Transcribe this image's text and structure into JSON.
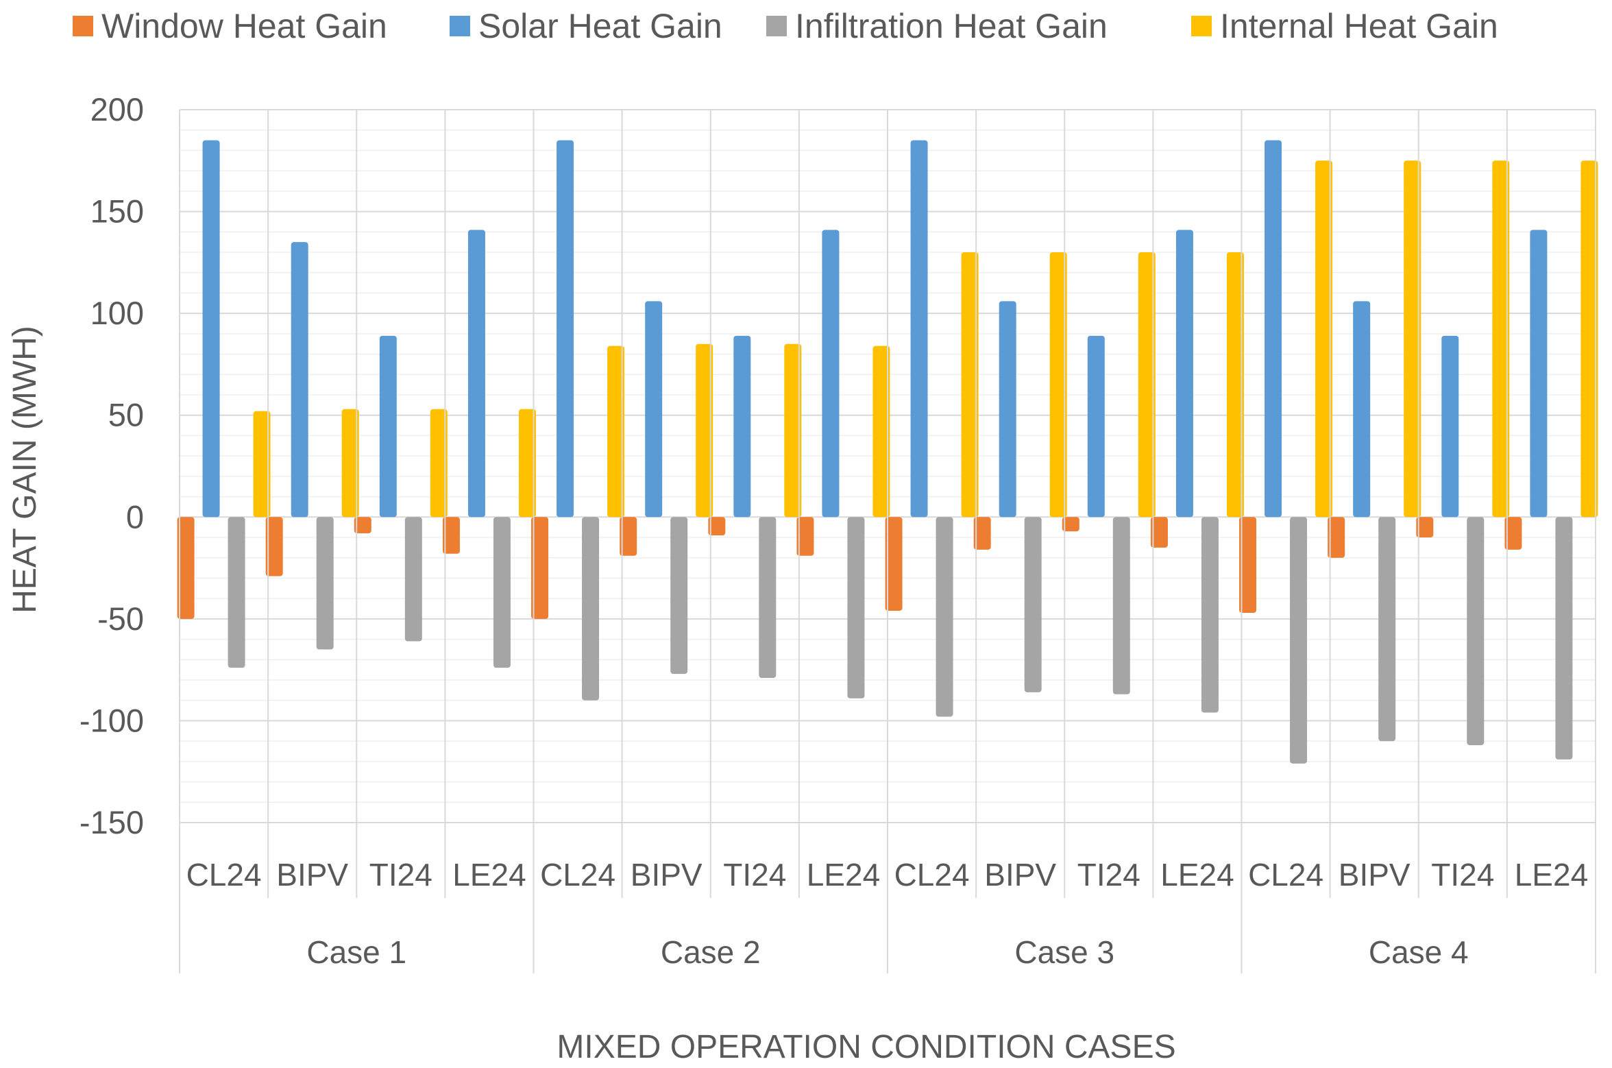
{
  "chart_data": {
    "type": "bar",
    "title": "",
    "xlabel": "MIXED OPERATION CONDITION CASES",
    "ylabel": "HEAT GAIN (MWH)",
    "ylim": [
      -150,
      200
    ],
    "yticks": [
      200,
      150,
      100,
      50,
      0,
      -50,
      -100,
      -150
    ],
    "ytick_labels": [
      "200",
      "150",
      "100",
      "50",
      "0",
      "-50",
      "-100",
      "-150"
    ],
    "grid": true,
    "legend_position": "top",
    "groups": [
      {
        "label": "Case 1",
        "categories": [
          "CL24",
          "BIPV",
          "TI24",
          "LE24"
        ]
      },
      {
        "label": "Case 2",
        "categories": [
          "CL24",
          "BIPV",
          "TI24",
          "LE24"
        ]
      },
      {
        "label": "Case 3",
        "categories": [
          "CL24",
          "BIPV",
          "TI24",
          "LE24"
        ]
      },
      {
        "label": "Case 4",
        "categories": [
          "CL24",
          "BIPV",
          "TI24",
          "LE24"
        ]
      }
    ],
    "series": [
      {
        "name": "Window Heat Gain",
        "color": "#ED7D31",
        "values": [
          -50,
          -29,
          -8,
          -18,
          -50,
          -19,
          -9,
          -19,
          -46,
          -16,
          -7,
          -15,
          -47,
          -20,
          -10,
          -16
        ]
      },
      {
        "name": "Solar Heat Gain",
        "color": "#5B9BD5",
        "values": [
          185,
          135,
          89,
          141,
          185,
          106,
          89,
          141,
          185,
          106,
          89,
          141,
          185,
          106,
          89,
          141
        ]
      },
      {
        "name": "Infiltration Heat Gain",
        "color": "#A5A5A5",
        "values": [
          -74,
          -65,
          -61,
          -74,
          -90,
          -77,
          -79,
          -89,
          -98,
          -86,
          -87,
          -96,
          -121,
          -110,
          -112,
          -119
        ]
      },
      {
        "name": "Internal Heat Gain",
        "color": "#FFC000",
        "values": [
          52,
          53,
          53,
          53,
          84,
          85,
          85,
          84,
          130,
          130,
          130,
          130,
          175,
          175,
          175,
          175
        ]
      }
    ]
  }
}
